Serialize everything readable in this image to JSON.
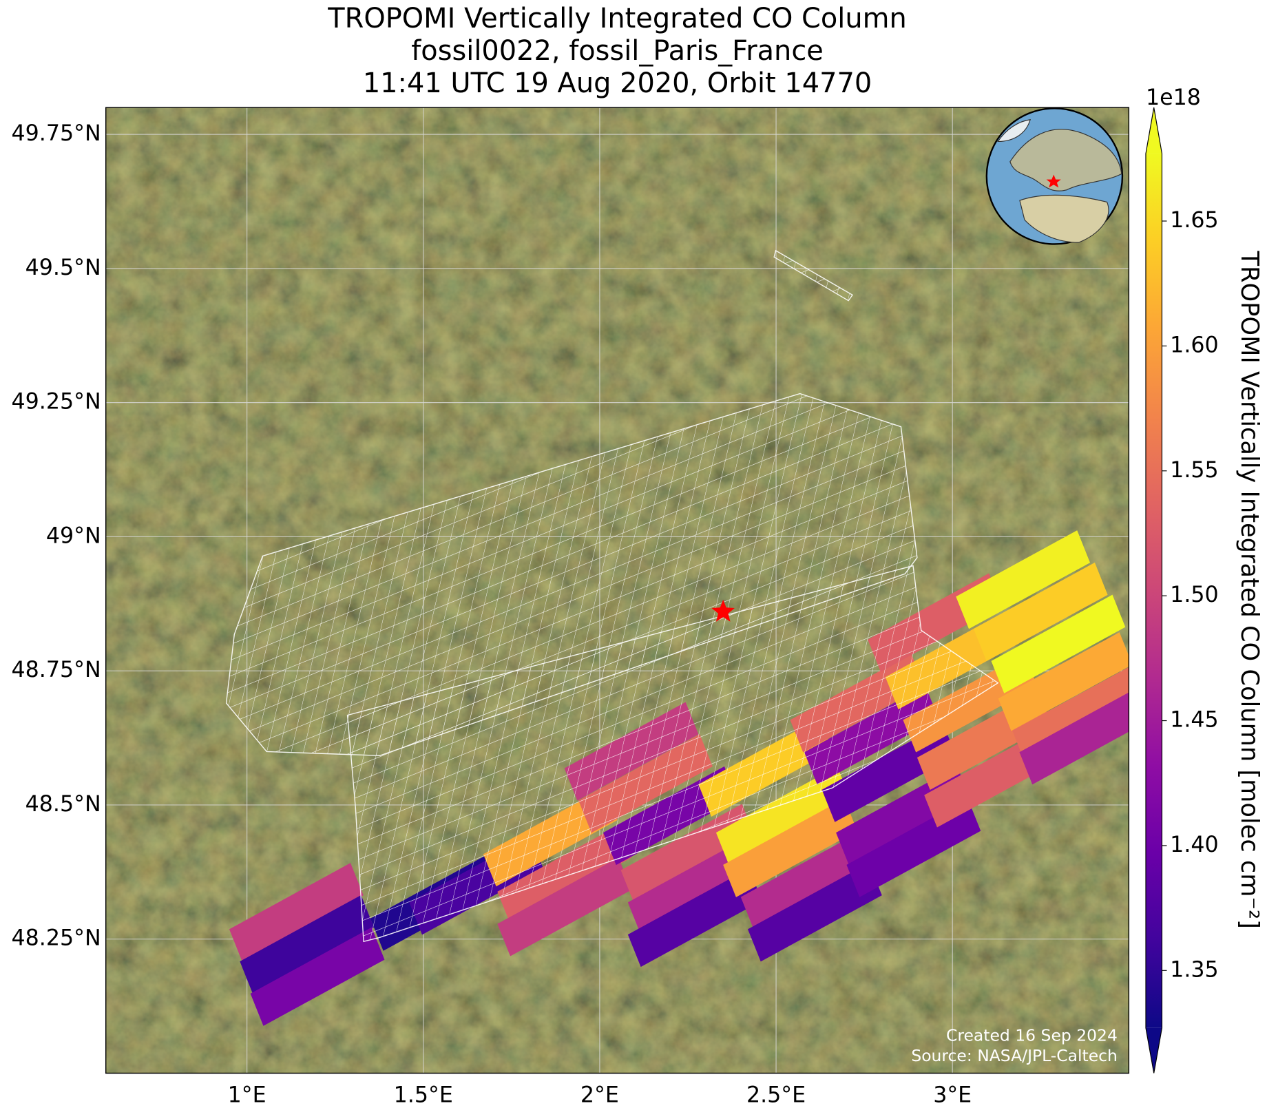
{
  "chart_data": {
    "type": "map",
    "title_lines": [
      "TROPOMI Vertically Integrated CO Column",
      "fossil0022, fossil_Paris_France",
      "11:41 UTC 19 Aug 2020, Orbit 14770"
    ],
    "xlim": [
      0.6,
      3.5
    ],
    "ylim": [
      48.0,
      49.8
    ],
    "xticks": [
      {
        "value": 1,
        "label": "1°E"
      },
      {
        "value": 1.5,
        "label": "1.5°E"
      },
      {
        "value": 2,
        "label": "2°E"
      },
      {
        "value": 2.5,
        "label": "2.5°E"
      },
      {
        "value": 3,
        "label": "3°E"
      }
    ],
    "yticks": [
      {
        "value": 48.25,
        "label": "48.25°N"
      },
      {
        "value": 48.5,
        "label": "48.5°N"
      },
      {
        "value": 48.75,
        "label": "48.75°N"
      },
      {
        "value": 49,
        "label": "49°N"
      },
      {
        "value": 49.25,
        "label": "49.25°N"
      },
      {
        "value": 49.5,
        "label": "49.5°N"
      },
      {
        "value": 49.75,
        "label": "49.75°N"
      }
    ],
    "grid": true,
    "colormap": "plasma",
    "colorbar": {
      "label": "TROPOMI Vertically Integrated CO Column [molec cm⁻²]",
      "offset_label": "1e18",
      "clim": [
        1.327,
        1.677
      ],
      "ticks": [
        1.35,
        {
          "value": 1.4,
          "label": "1.40"
        },
        1.45,
        {
          "value": 1.5,
          "label": "1.50"
        },
        1.55,
        {
          "value": 1.6,
          "label": "1.60"
        },
        1.65
      ]
    },
    "pixels": {
      "lon": [
        1.14,
        1.17,
        1.2,
        1.54,
        1.65,
        1.86,
        1.9,
        1.9,
        2.09,
        2.13,
        2.2,
        2.25,
        2.27,
        2.27,
        2.47,
        2.52,
        2.54,
        2.59,
        2.61,
        2.73,
        2.77,
        2.82,
        2.86,
        2.89,
        2.95,
        3.0,
        3.05,
        3.09,
        3.11,
        3.2,
        3.25,
        3.3,
        3.32,
        3.36,
        3.38
      ],
      "lat": [
        48.3,
        48.24,
        48.18,
        48.32,
        48.35,
        48.44,
        48.37,
        48.31,
        48.6,
        48.54,
        48.48,
        48.41,
        48.35,
        48.29,
        48.57,
        48.48,
        48.42,
        48.36,
        48.3,
        48.69,
        48.63,
        48.56,
        48.48,
        48.42,
        48.84,
        48.77,
        48.69,
        48.62,
        48.55,
        48.92,
        48.86,
        48.8,
        48.73,
        48.67,
        48.63
      ],
      "values": [
        1.49,
        1.36,
        1.41,
        1.34,
        1.37,
        1.61,
        1.53,
        1.49,
        1.49,
        1.54,
        1.41,
        1.52,
        1.47,
        1.38,
        1.64,
        1.66,
        1.6,
        1.47,
        1.38,
        1.54,
        1.43,
        1.39,
        1.42,
        1.4,
        1.53,
        1.63,
        1.59,
        1.56,
        1.53,
        1.67,
        1.64,
        1.68,
        1.61,
        1.55,
        1.46
      ]
    },
    "site": {
      "lon": 2.35,
      "lat": 48.86
    },
    "credits": [
      "Created 16 Sep 2024",
      "Source: NASA/JPL-Caltech"
    ]
  }
}
